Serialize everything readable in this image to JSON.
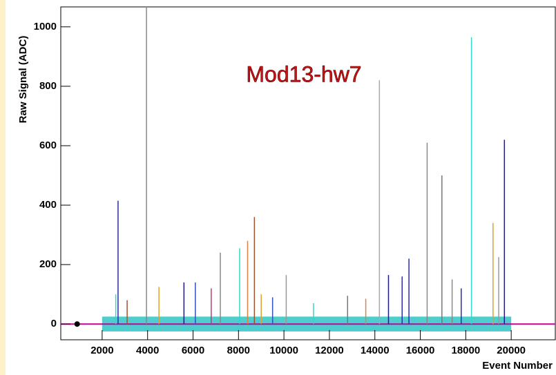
{
  "chart_data": {
    "type": "spike",
    "title": "Mod13-hw7",
    "y_label": "Raw Signal (ADC)",
    "x_label": "Event Number",
    "xlim": [
      180,
      21940
    ],
    "ylim": [
      -53,
      1067
    ],
    "xticks": [
      2000,
      4000,
      6000,
      8000,
      10000,
      12000,
      14000,
      16000,
      18000,
      20000
    ],
    "yticks": [
      0,
      200,
      400,
      600,
      800,
      1000
    ],
    "band": {
      "x": [
        2000,
        20000
      ],
      "y": [
        -25,
        25
      ],
      "color": "#2ec4c4"
    },
    "point": {
      "x": 900,
      "y": 0
    },
    "baseline_color": "#cc0099",
    "spikes": {
      "x": [
        2700,
        3950,
        14200,
        18250,
        19700,
        16300,
        16950,
        8700,
        19200,
        8400,
        8050,
        7200,
        15500,
        19450,
        14600,
        15200,
        10100,
        5600,
        6100,
        4500,
        17400,
        9500,
        2600,
        3100,
        12800,
        13600,
        17800,
        11300,
        6800,
        9000
      ],
      "values": [
        415,
        1067,
        820,
        965,
        620,
        610,
        500,
        360,
        340,
        280,
        255,
        240,
        220,
        225,
        165,
        160,
        165,
        140,
        140,
        125,
        150,
        90,
        100,
        80,
        95,
        85,
        120,
        70,
        120,
        100
      ],
      "colors": [
        "#2b2b9e",
        "#888888",
        "#aaaaaa",
        "#33d6c8",
        "#1c1c80",
        "#888888",
        "#777777",
        "#a0522d",
        "#e0a030",
        "#e08040",
        "#33d6c8",
        "#888888",
        "#2b2bb0",
        "#999999",
        "#1c1c80",
        "#2b2bb0",
        "#999999",
        "#1c1c80",
        "#3050c0",
        "#e0a030",
        "#888888",
        "#3050c0",
        "#33d6c8",
        "#a0522d",
        "#777777",
        "#e08040",
        "#2b2bb0",
        "#33d6c8",
        "#cc3377",
        "#e0a030"
      ]
    }
  }
}
